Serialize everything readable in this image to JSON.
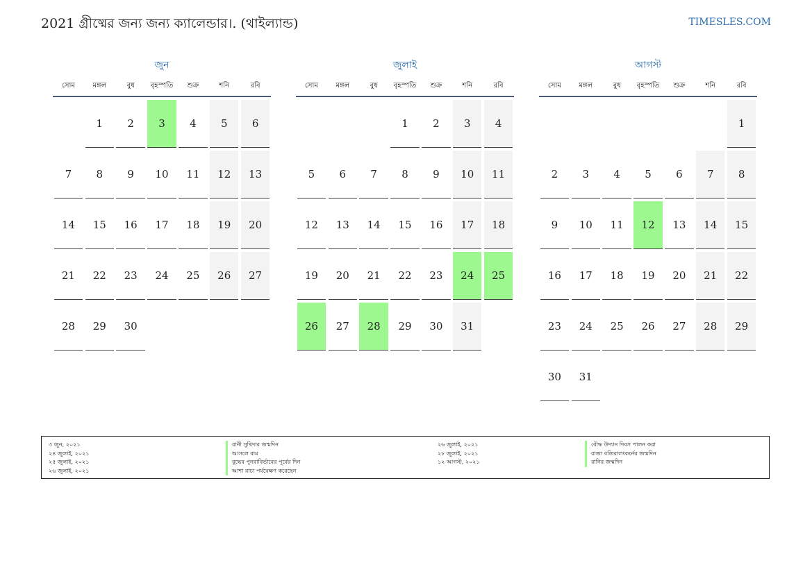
{
  "header": {
    "title": "2021 গ্রীষ্মের জন্য জন্য ক্যালেন্ডার।. (থাইল্যান্ড)",
    "site": "TIMESLES.COM"
  },
  "weekdays": [
    "সোম",
    "মঙ্গল",
    "বুধ",
    "বৃহস্পতি",
    "শুক্র",
    "শনি",
    "রবি"
  ],
  "colors": {
    "holiday": "#9cf88f",
    "weekend": "#f3f3f3",
    "accent": "#2a6db0"
  },
  "months": [
    {
      "name": "জুন",
      "weeks": [
        [
          "",
          "1",
          "2",
          "3",
          "4",
          "5",
          "6"
        ],
        [
          "7",
          "8",
          "9",
          "10",
          "11",
          "12",
          "13"
        ],
        [
          "14",
          "15",
          "16",
          "17",
          "18",
          "19",
          "20"
        ],
        [
          "21",
          "22",
          "23",
          "24",
          "25",
          "26",
          "27"
        ],
        [
          "28",
          "29",
          "30",
          "",
          "",
          "",
          ""
        ]
      ],
      "holidays": [
        "3"
      ]
    },
    {
      "name": "জুলাই",
      "weeks": [
        [
          "",
          "",
          "",
          "1",
          "2",
          "3",
          "4"
        ],
        [
          "5",
          "6",
          "7",
          "8",
          "9",
          "10",
          "11"
        ],
        [
          "12",
          "13",
          "14",
          "15",
          "16",
          "17",
          "18"
        ],
        [
          "19",
          "20",
          "21",
          "22",
          "23",
          "24",
          "25"
        ],
        [
          "26",
          "27",
          "28",
          "29",
          "30",
          "31",
          ""
        ]
      ],
      "holidays": [
        "24",
        "25",
        "26",
        "28"
      ]
    },
    {
      "name": "আগস্ট",
      "weeks": [
        [
          "",
          "",
          "",
          "",
          "",
          "",
          "1"
        ],
        [
          "2",
          "3",
          "4",
          "5",
          "6",
          "7",
          "8"
        ],
        [
          "9",
          "10",
          "11",
          "12",
          "13",
          "14",
          "15"
        ],
        [
          "16",
          "17",
          "18",
          "19",
          "20",
          "21",
          "22"
        ],
        [
          "23",
          "24",
          "25",
          "26",
          "27",
          "28",
          "29"
        ],
        [
          "30",
          "31",
          "",
          "",
          "",
          "",
          ""
        ]
      ],
      "holidays": [
        "12"
      ]
    }
  ],
  "legend": {
    "left": [
      {
        "date": "৩ জুন, ২০২১",
        "name": "রানী সুথিদার জন্মদিন"
      },
      {
        "date": "২৪ জুলাই, ২০২১",
        "name": "আসলে বাম"
      },
      {
        "date": "২৫ জুলাই, ২০২১",
        "name": "বুদ্ধের পুনরাবির্ভাবের পূর্বের দিন"
      },
      {
        "date": "২৬ জুলাই, ২০২১",
        "name": "আশা বাচা পর্যবেক্ষণ করেছেন"
      }
    ],
    "right": [
      {
        "date": "২৬ জুলাই, ২০২১",
        "name": "বৌদ্ধ উদ্যান দিবস পালন করা"
      },
      {
        "date": "২৮ জুলাই, ২০২১",
        "name": "রাজা বজিরালংকর্নের জন্মদিন"
      },
      {
        "date": "১২ আগস্ট, ২০২১",
        "name": "রানির জন্মদিন"
      }
    ]
  }
}
